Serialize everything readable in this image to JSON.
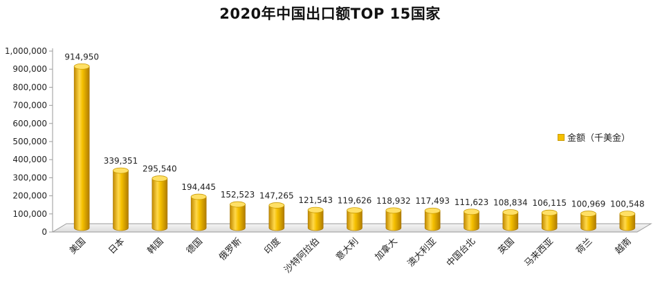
{
  "chart_data": {
    "type": "bar",
    "title": "2020年中国出口额TOP 15国家",
    "categories": [
      "美国",
      "日本",
      "韩国",
      "德国",
      "俄罗斯",
      "印度",
      "沙特阿拉伯",
      "意大利",
      "加拿大",
      "澳大利亚",
      "中国台北",
      "英国",
      "马来西亚",
      "荷兰",
      "越南"
    ],
    "series": [
      {
        "name": "金额（千美金）",
        "values": [
          914950,
          339351,
          295540,
          194445,
          152523,
          147265,
          121543,
          119626,
          118932,
          117493,
          111623,
          108834,
          106115,
          100969,
          100548
        ]
      }
    ],
    "data_labels": [
      "914,950",
      "339,351",
      "295,540",
      "194,445",
      "152,523",
      "147,265",
      "121,543",
      "119,626",
      "118,932",
      "117,493",
      "111,623",
      "108,834",
      "106,115",
      "100,969",
      "100,548"
    ],
    "y_ticks": [
      "0",
      "100,000",
      "200,000",
      "300,000",
      "400,000",
      "500,000",
      "600,000",
      "700,000",
      "800,000",
      "900,000",
      "1,000,000"
    ],
    "ylim": [
      0,
      1000000
    ],
    "xlabel": "",
    "ylabel": "",
    "legend_position": "right",
    "grid": false,
    "style": "3d-cylinder",
    "colors": {
      "bar": "#f5c000",
      "bar_dark": "#c28a00",
      "bar_light": "#ffe066",
      "axis": "#9a9a9a"
    }
  }
}
